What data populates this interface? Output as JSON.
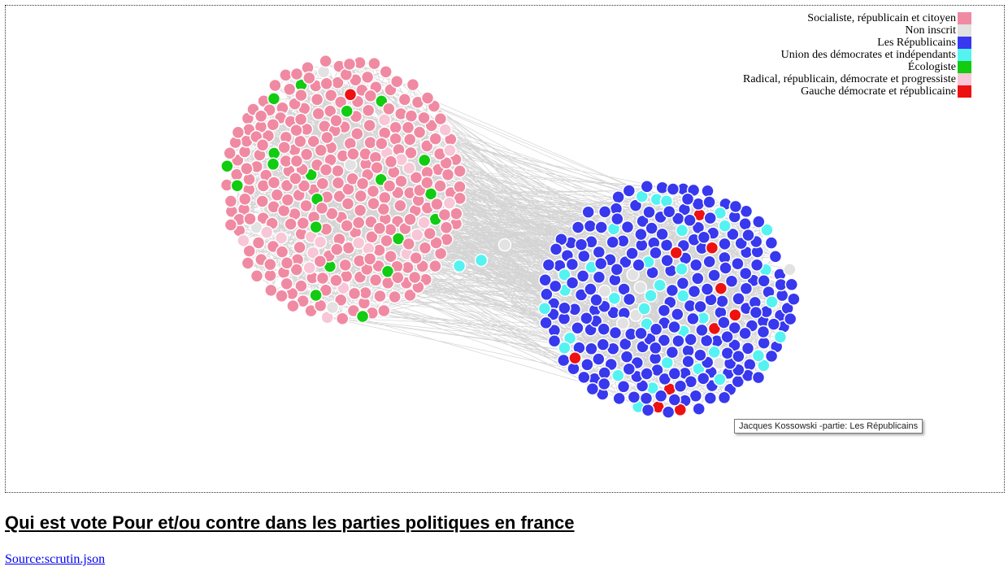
{
  "legend": {
    "items": [
      {
        "label": "Socialiste, républicain et citoyen",
        "color": "#f08aa3"
      },
      {
        "label": "Non inscrit",
        "color": "#e2e2e2"
      },
      {
        "label": "Les Républicains",
        "color": "#3838ee"
      },
      {
        "label": "Union des démocrates et indépendants",
        "color": "#55f2f2"
      },
      {
        "label": "Écologiste",
        "color": "#11cc11"
      },
      {
        "label": "Radical, républicain, démocrate et progressiste",
        "color": "#f8c6d6"
      },
      {
        "label": "Gauche démocrate et républicaine",
        "color": "#ee1111"
      }
    ]
  },
  "tooltip": {
    "text": "Jacques Kossowski -partie: Les Républicains"
  },
  "page": {
    "title": "Qui est vote Pour et/ou contre dans les parties politiques en france",
    "source_link": "Source:scrutin.json"
  },
  "colors": {
    "edge": "#cccccc",
    "node_stroke": "#ffffff",
    "frame": "#333333",
    "link": "#0000ee"
  }
}
